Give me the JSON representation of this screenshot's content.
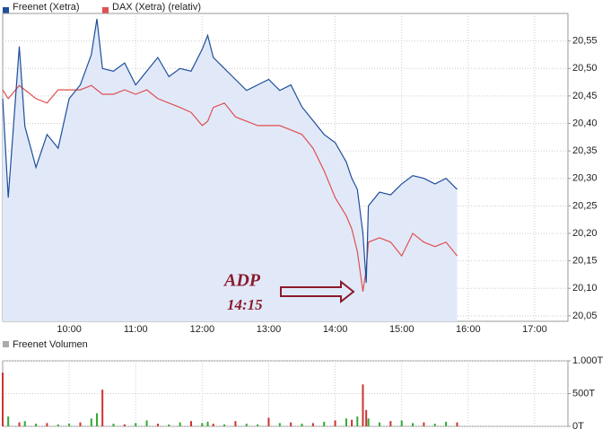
{
  "chart_data": [
    {
      "type": "line",
      "x": [
        "09:00",
        "09:05",
        "09:15",
        "09:20",
        "09:30",
        "09:40",
        "09:50",
        "10:00",
        "10:10",
        "10:20",
        "10:25",
        "10:30",
        "10:40",
        "10:50",
        "11:00",
        "11:10",
        "11:20",
        "11:30",
        "11:40",
        "11:50",
        "12:00",
        "12:05",
        "12:10",
        "12:20",
        "12:30",
        "12:40",
        "12:50",
        "13:00",
        "13:10",
        "13:20",
        "13:30",
        "13:40",
        "13:50",
        "14:00",
        "14:10",
        "14:15",
        "14:20",
        "14:25",
        "14:28",
        "14:30",
        "14:40",
        "14:50",
        "15:00",
        "15:10",
        "15:20",
        "15:30",
        "15:40",
        "15:50"
      ],
      "series": [
        {
          "name": "Freenet (Xetra)",
          "color": "#1f4e99",
          "fill": "#e1e9f9",
          "values": [
            20.445,
            20.265,
            20.54,
            20.395,
            20.32,
            20.38,
            20.355,
            20.445,
            20.47,
            20.525,
            20.59,
            20.5,
            20.495,
            20.51,
            20.47,
            20.495,
            20.52,
            20.485,
            20.5,
            20.495,
            20.535,
            20.56,
            20.52,
            20.5,
            20.48,
            20.46,
            20.47,
            20.48,
            20.46,
            20.47,
            20.43,
            20.405,
            20.38,
            20.365,
            20.33,
            20.3,
            20.28,
            20.2,
            20.11,
            20.25,
            20.275,
            20.27,
            20.29,
            20.305,
            20.3,
            20.29,
            20.3,
            20.28
          ]
        },
        {
          "name": "DAX (Xetra) (relativ)",
          "color": "#e05050",
          "values": [
            20.461,
            20.445,
            20.469,
            20.461,
            20.445,
            20.437,
            20.461,
            20.461,
            20.461,
            20.469,
            20.461,
            20.453,
            20.453,
            20.461,
            20.453,
            20.461,
            20.445,
            20.437,
            20.429,
            20.42,
            20.396,
            20.404,
            20.429,
            20.437,
            20.412,
            20.404,
            20.396,
            20.396,
            20.396,
            20.388,
            20.38,
            20.355,
            20.314,
            20.265,
            20.232,
            20.208,
            20.167,
            20.094,
            20.135,
            20.184,
            20.192,
            20.184,
            20.159,
            20.2,
            20.184,
            20.176,
            20.184,
            20.159
          ]
        }
      ],
      "xlim": [
        "09:00",
        "17:30"
      ],
      "xticks": [
        "10:00",
        "11:00",
        "12:00",
        "13:00",
        "14:00",
        "15:00",
        "16:00",
        "17:00"
      ],
      "ylim": [
        20.04,
        20.6
      ],
      "yticks": [
        {
          "value": 20.05,
          "label": "20,05"
        },
        {
          "value": 20.1,
          "label": "20,10"
        },
        {
          "value": 20.15,
          "label": "20,15"
        },
        {
          "value": 20.2,
          "label": "20,20"
        },
        {
          "value": 20.25,
          "label": "20,25"
        },
        {
          "value": 20.3,
          "label": "20,30"
        },
        {
          "value": 20.35,
          "label": "20,35"
        },
        {
          "value": 20.4,
          "label": "20,40"
        },
        {
          "value": 20.45,
          "label": "20,45"
        },
        {
          "value": 20.5,
          "label": "20,50"
        },
        {
          "value": 20.55,
          "label": "20,55"
        }
      ],
      "grid": true,
      "annotations": [
        {
          "text": "ADP"
        },
        {
          "text": "14:15"
        }
      ]
    },
    {
      "type": "bar",
      "x": [
        "09:00",
        "09:05",
        "09:15",
        "09:20",
        "09:30",
        "09:40",
        "09:50",
        "10:00",
        "10:10",
        "10:20",
        "10:25",
        "10:30",
        "10:40",
        "10:50",
        "11:00",
        "11:10",
        "11:20",
        "11:30",
        "11:40",
        "11:50",
        "12:00",
        "12:05",
        "12:10",
        "12:20",
        "12:30",
        "12:40",
        "12:50",
        "13:00",
        "13:10",
        "13:20",
        "13:30",
        "13:40",
        "13:50",
        "14:00",
        "14:10",
        "14:15",
        "14:20",
        "14:25",
        "14:28",
        "14:30",
        "14:40",
        "14:50",
        "15:00",
        "15:10",
        "15:20",
        "15:30",
        "15:40",
        "15:50"
      ],
      "series": [
        {
          "name": "Freenet Volumen",
          "color": "#aaaaaa",
          "values": [
            820,
            150,
            60,
            80,
            40,
            50,
            30,
            40,
            60,
            120,
            200,
            560,
            40,
            30,
            50,
            90,
            40,
            30,
            60,
            80,
            50,
            70,
            40,
            30,
            80,
            40,
            30,
            130,
            50,
            60,
            40,
            50,
            70,
            90,
            120,
            100,
            150,
            640,
            250,
            120,
            60,
            80,
            90,
            50,
            60,
            40,
            70,
            60
          ],
          "colors": [
            "#cc3333",
            "#33aa33",
            "#cc3333",
            "#33aa33",
            "#33aa33",
            "#cc3333",
            "#33aa33",
            "#33aa33",
            "#cc3333",
            "#33aa33",
            "#33aa33",
            "#cc3333",
            "#33aa33",
            "#cc3333",
            "#33aa33",
            "#33aa33",
            "#cc3333",
            "#33aa33",
            "#33aa33",
            "#cc3333",
            "#33aa33",
            "#33aa33",
            "#cc3333",
            "#33aa33",
            "#cc3333",
            "#33aa33",
            "#33aa33",
            "#cc3333",
            "#33aa33",
            "#cc3333",
            "#33aa33",
            "#cc3333",
            "#33aa33",
            "#cc3333",
            "#33aa33",
            "#cc3333",
            "#33aa33",
            "#cc3333",
            "#cc3333",
            "#33aa33",
            "#33aa33",
            "#cc3333",
            "#33aa33",
            "#33aa33",
            "#cc3333",
            "#33aa33",
            "#33aa33",
            "#cc3333"
          ]
        }
      ],
      "xlim": [
        "09:00",
        "17:30"
      ],
      "xticks": [
        "10:00",
        "11:00",
        "12:00",
        "13:00",
        "14:00",
        "15:00",
        "16:00",
        "17:00"
      ],
      "ylim": [
        0,
        1000
      ],
      "yticks": [
        {
          "value": 0,
          "label": "0T"
        },
        {
          "value": 500,
          "label": "500T"
        },
        {
          "value": 1000,
          "label": "1.000T"
        }
      ],
      "grid": true
    }
  ]
}
